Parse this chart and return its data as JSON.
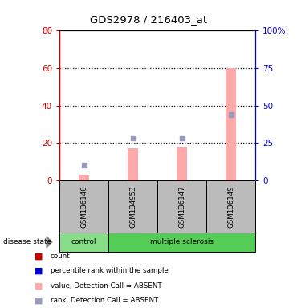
{
  "title": "GDS2978 / 216403_at",
  "samples": [
    "GSM136140",
    "GSM134953",
    "GSM136147",
    "GSM136149"
  ],
  "pink_bar_values": [
    3,
    17,
    18,
    60
  ],
  "blue_square_values": [
    10,
    28,
    28,
    44
  ],
  "left_ylim": [
    0,
    80
  ],
  "right_ylim": [
    0,
    100
  ],
  "left_yticks": [
    0,
    20,
    40,
    60,
    80
  ],
  "right_yticks": [
    0,
    25,
    50,
    75,
    100
  ],
  "right_yticklabels": [
    "0",
    "25",
    "50",
    "75",
    "100%"
  ],
  "left_ycolor": "#cc0000",
  "right_ycolor": "#0000cc",
  "pink_bar_color": "#ffaaaa",
  "blue_square_color": "#9999bb",
  "sample_bg_color": "#bbbbbb",
  "control_bg_color": "#88dd88",
  "ms_bg_color": "#55cc55",
  "legend_red_color": "#cc0000",
  "legend_blue_color": "#0000cc",
  "legend_pink_color": "#ffaaaa",
  "legend_lblue_color": "#9999bb",
  "dotted_lines": [
    20,
    40,
    60
  ],
  "bar_width": 0.22
}
